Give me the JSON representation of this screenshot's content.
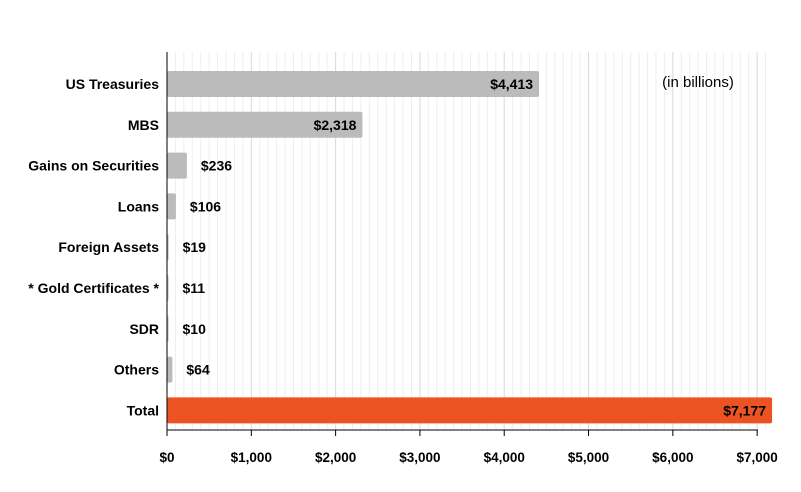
{
  "chart_data": {
    "type": "bar",
    "orientation": "horizontal",
    "categories": [
      "US Treasuries",
      "MBS",
      "Gains on Securities",
      "Loans",
      "Foreign Assets",
      "* Gold Certificates *",
      "SDR",
      "Others",
      "Total"
    ],
    "values": [
      4413,
      2318,
      236,
      106,
      19,
      11,
      10,
      64,
      7177
    ],
    "data_labels": [
      "$4,413",
      "$2,318",
      "$236",
      "$106",
      "$19",
      "$11",
      "$10",
      "$64",
      "$7,177"
    ],
    "label_inside": [
      true,
      true,
      false,
      false,
      false,
      false,
      false,
      false,
      true
    ],
    "bar_colors": [
      "#bbbbbb",
      "#bbbbbb",
      "#bbbbbb",
      "#bbbbbb",
      "#bbbbbb",
      "#bbbbbb",
      "#bbbbbb",
      "#bbbbbb",
      "#ec5322"
    ],
    "xlim": [
      0,
      7200
    ],
    "xticks": [
      0,
      1000,
      2000,
      3000,
      4000,
      5000,
      6000,
      7000
    ],
    "xtick_labels": [
      "$0",
      "$1,000",
      "$2,000",
      "$3,000",
      "$4,000",
      "$5,000",
      "$6,000",
      "$7,000"
    ],
    "annotation": "(in billions)",
    "title": "",
    "xlabel": "",
    "ylabel": "",
    "grid": true
  },
  "colors": {
    "bar": "#bbbbbb",
    "total": "#ec5322",
    "grid_major": "#d9d9d9",
    "grid_minor": "#eeeeee"
  }
}
